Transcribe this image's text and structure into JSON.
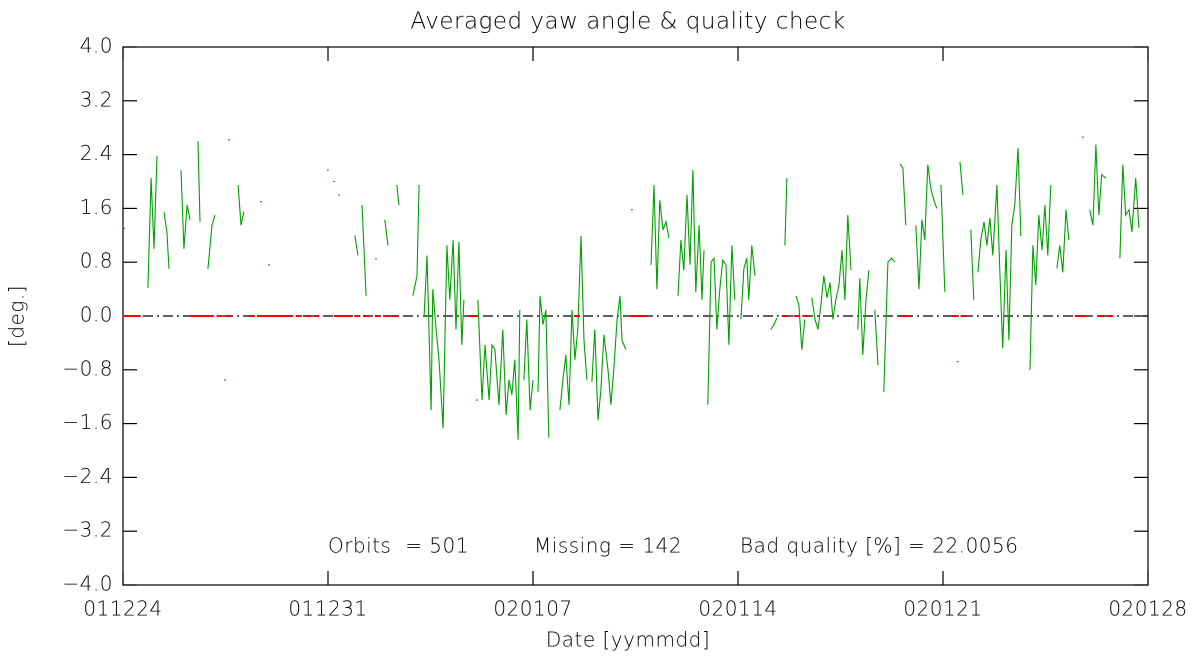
{
  "chart_data": {
    "type": "line",
    "title": "Averaged yaw angle & quality check",
    "x_label": "Date [yymmdd]",
    "y_label": "[deg.]",
    "xlim": [
      0,
      35
    ],
    "xticks": [
      {
        "value": 0,
        "label": "011224"
      },
      {
        "value": 7,
        "label": "011231"
      },
      {
        "value": 14,
        "label": "020107"
      },
      {
        "value": 21,
        "label": "020114"
      },
      {
        "value": 28,
        "label": "020121"
      },
      {
        "value": 35,
        "label": "020128"
      }
    ],
    "ylim": [
      -4,
      4
    ],
    "yticks": [
      {
        "value": 4,
        "label": "4.0"
      },
      {
        "value": 3.2,
        "label": "3.2"
      },
      {
        "value": 2.4,
        "label": "2.4"
      },
      {
        "value": 1.6,
        "label": "1.6"
      },
      {
        "value": 0.8,
        "label": "0.8"
      },
      {
        "value": 0,
        "label": "0.0"
      },
      {
        "value": -0.8,
        "label": "−0.8"
      },
      {
        "value": -1.6,
        "label": "−1.6"
      },
      {
        "value": -2.4,
        "label": "−2.4"
      },
      {
        "value": -3.2,
        "label": "−3.2"
      },
      {
        "value": -4,
        "label": "−4.0"
      }
    ],
    "hline": {
      "value": 0,
      "color": "#000000"
    },
    "annotations": [
      {
        "text": "Orbits  = 501",
        "color": "#000000"
      },
      {
        "text": "Missing = 142",
        "color": "#000000"
      },
      {
        "text": "Bad quality [%] = 22.0056",
        "color": "#ff0000"
      }
    ],
    "series": [
      {
        "color": "#00a000",
        "x": [
          0.0,
          null,
          0.85,
          0.96,
          1.06,
          1.16,
          null,
          1.4,
          1.5,
          1.57,
          null,
          1.98,
          2.08,
          2.19,
          2.29,
          null,
          2.56,
          2.63,
          null,
          2.9,
          3.04,
          3.14,
          null,
          3.45,
          null,
          3.59,
          null,
          3.93,
          4.03,
          4.13,
          null,
          4.68,
          null,
          4.95,
          null,
          6.96,
          null,
          7.17,
          null,
          7.34,
          null,
          7.92,
          8.02,
          null,
          8.16,
          8.3,
          null,
          8.6,
          null,
          8.94,
          9.05,
          null,
          9.35,
          9.42,
          null,
          9.9,
          10.04,
          10.11,
          null,
          10.28,
          10.38,
          10.52,
          10.58,
          10.69,
          10.79,
          10.93,
          11.06,
          11.16,
          11.27,
          11.37,
          11.47,
          11.57,
          11.64,
          null,
          12.05,
          null,
          12.12,
          12.26,
          12.36,
          12.5,
          12.6,
          12.7,
          12.84,
          12.97,
          13.08,
          13.18,
          13.28,
          13.38,
          13.49,
          13.55,
          null,
          13.69,
          13.79,
          13.9,
          14.0,
          null,
          14.17,
          14.24,
          14.34,
          14.44,
          14.54,
          null,
          14.92,
          15.02,
          15.12,
          15.23,
          15.33,
          15.43,
          15.53,
          15.64,
          15.74,
          15.84,
          null,
          16.01,
          16.11,
          16.22,
          16.32,
          16.42,
          16.56,
          16.66,
          16.76,
          16.87,
          16.97,
          17.04,
          17.17,
          null,
          17.34,
          null,
          18.03,
          18.13,
          18.23,
          18.33,
          18.44,
          18.54,
          18.64,
          null,
          18.95,
          19.05,
          19.15,
          19.26,
          19.36,
          19.46,
          19.56,
          19.67,
          19.77,
          19.84,
          null,
          19.97,
          20.08,
          20.18,
          20.28,
          20.38,
          20.48,
          20.59,
          20.69,
          20.79,
          20.89,
          null,
          21.1,
          21.2,
          21.3,
          21.37,
          21.47,
          21.58,
          null,
          22.12,
          22.23,
          22.33,
          null,
          22.6,
          22.67,
          null,
          22.98,
          23.08,
          23.18,
          23.28,
          null,
          23.52,
          23.63,
          23.73,
          23.83,
          23.93,
          24.04,
          24.14,
          24.24,
          24.34,
          24.45,
          24.55,
          24.65,
          24.75,
          24.86,
          null,
          25.09,
          25.16,
          25.26,
          25.37,
          25.47,
          null,
          25.67,
          25.78,
          null,
          25.98,
          26.12,
          26.25,
          26.36,
          null,
          26.53,
          26.63,
          26.73,
          null,
          27.07,
          27.18,
          27.28,
          27.38,
          27.48,
          27.59,
          27.69,
          27.79,
          null,
          27.93,
          28.06,
          null,
          28.47,
          null,
          28.58,
          28.68,
          null,
          28.95,
          29.05,
          null,
          29.19,
          29.29,
          29.4,
          29.5,
          29.6,
          29.7,
          29.84,
          29.94,
          30.04,
          30.15,
          30.25,
          30.35,
          30.45,
          30.56,
          30.66,
          null,
          30.97,
          31.07,
          31.17,
          31.27,
          31.38,
          31.48,
          31.58,
          31.68,
          null,
          31.89,
          31.99,
          32.09,
          32.2,
          32.3,
          null,
          32.74,
          null,
          33.01,
          33.12,
          33.22,
          33.32,
          33.42,
          33.56,
          null,
          34.04,
          34.14,
          34.24,
          34.35,
          34.45,
          34.58,
          34.69
        ],
        "values": [
          1.3,
          null,
          0.42,
          2.05,
          1.0,
          2.38,
          null,
          1.55,
          1.25,
          0.7,
          null,
          2.17,
          1.0,
          1.65,
          1.43,
          null,
          2.6,
          1.4,
          null,
          0.7,
          1.35,
          1.5,
          null,
          -0.95,
          null,
          2.62,
          null,
          1.95,
          1.35,
          1.55,
          null,
          1.7,
          null,
          0.76,
          null,
          2.17,
          null,
          2.0,
          null,
          1.8,
          null,
          1.2,
          0.9,
          null,
          1.65,
          0.3,
          null,
          0.85,
          null,
          1.43,
          1.05,
          null,
          1.95,
          1.65,
          null,
          0.3,
          0.6,
          1.95,
          null,
          0.0,
          0.9,
          -1.4,
          0.4,
          -0.2,
          -0.65,
          -1.67,
          1.05,
          0.24,
          1.13,
          -0.2,
          1.1,
          -0.43,
          0.24,
          null,
          -1.25,
          null,
          0.24,
          -1.25,
          -0.43,
          -1.25,
          -0.43,
          -0.5,
          -1.32,
          -0.2,
          -1.47,
          -0.95,
          -1.17,
          -0.65,
          -1.84,
          0.09,
          null,
          -0.95,
          -0.05,
          -1.4,
          -0.95,
          null,
          -1.13,
          0.3,
          -0.13,
          0.09,
          -1.81,
          null,
          -1.4,
          -0.95,
          -0.58,
          -1.32,
          0.09,
          -0.65,
          -0.2,
          1.19,
          -0.36,
          -0.95,
          null,
          -0.98,
          -0.2,
          -1.55,
          -1.1,
          -0.28,
          -0.8,
          -1.32,
          -0.8,
          -0.05,
          0.3,
          -0.36,
          -0.5,
          null,
          1.58,
          null,
          0.76,
          1.95,
          0.4,
          1.72,
          1.28,
          1.4,
          1.16,
          null,
          0.3,
          1.13,
          0.68,
          1.8,
          0.76,
          2.17,
          0.36,
          1.35,
          0.24,
          0.98,
          null,
          -1.32,
          0.8,
          0.86,
          -0.2,
          0.4,
          0.83,
          0.76,
          -0.43,
          1.05,
          0.24,
          null,
          -0.05,
          0.71,
          0.86,
          0.24,
          1.05,
          0.6,
          null,
          -0.2,
          -0.13,
          -0.03,
          null,
          1.05,
          2.05,
          null,
          0.3,
          0.16,
          -0.5,
          -0.05,
          null,
          0.27,
          -0.05,
          -0.2,
          0.16,
          0.6,
          0.27,
          0.5,
          -0.05,
          0.24,
          0.46,
          0.98,
          0.24,
          1.5,
          0.68,
          null,
          -0.2,
          0.56,
          -0.58,
          0.24,
          0.68,
          null,
          0.09,
          -0.73,
          null,
          -1.13,
          0.8,
          0.86,
          0.8,
          null,
          2.26,
          2.2,
          1.35,
          null,
          1.35,
          0.4,
          1.43,
          1.13,
          2.25,
          1.88,
          1.72,
          1.6,
          null,
          1.95,
          0.36,
          null,
          -0.68,
          null,
          2.29,
          1.8,
          null,
          1.28,
          0.24,
          null,
          0.65,
          1.13,
          1.4,
          1.05,
          1.46,
          0.9,
          1.95,
          0.68,
          -0.48,
          0.98,
          -0.36,
          1.35,
          1.65,
          2.5,
          1.19,
          null,
          -0.8,
          1.05,
          0.46,
          1.5,
          0.98,
          1.65,
          0.9,
          1.95,
          null,
          0.71,
          1.05,
          0.65,
          1.58,
          1.13,
          null,
          2.66,
          null,
          1.58,
          1.35,
          2.55,
          1.5,
          2.1,
          2.05,
          null,
          0.86,
          2.25,
          1.5,
          1.58,
          1.25,
          2.05,
          1.31
        ]
      },
      {
        "color": "#ff0000",
        "marker": "dash",
        "x": [
          0.1,
          0.3,
          0.5,
          2.4,
          2.6,
          2.8,
          3.0,
          3.3,
          3.6,
          4.4,
          4.7,
          4.9,
          5.1,
          5.3,
          5.5,
          5.7,
          6.0,
          6.3,
          6.6,
          7.3,
          7.5,
          7.7,
          8.0,
          8.3,
          8.7,
          9.0,
          9.3,
          11.9,
          12.0,
          15.5,
          17.4,
          17.6,
          17.8,
          22.6,
          23.0,
          23.3,
          26.6,
          26.8,
          28.4,
          28.7,
          32.6,
          32.8,
          33.4,
          33.7
        ],
        "values": [
          0,
          0,
          0,
          0,
          0,
          0,
          0,
          0,
          0,
          0,
          0,
          0,
          0,
          0,
          0,
          0,
          0,
          0,
          0,
          0,
          0,
          0,
          0,
          0,
          0,
          0,
          0,
          0,
          0,
          0,
          0,
          0,
          0,
          0,
          0,
          0,
          0,
          0,
          0,
          0,
          0,
          0,
          0,
          0
        ]
      }
    ]
  }
}
